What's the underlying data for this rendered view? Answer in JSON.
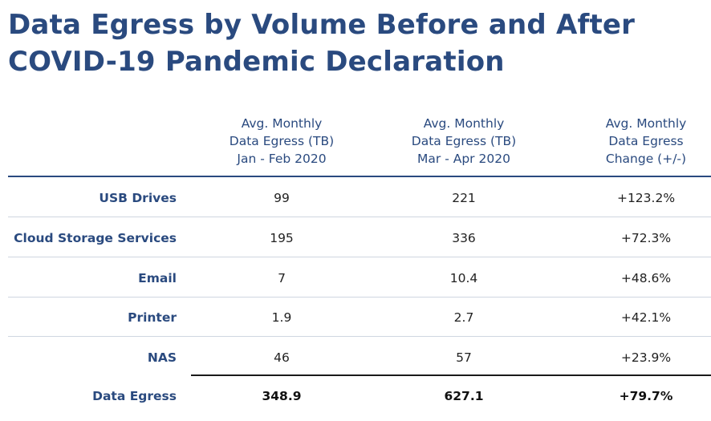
{
  "title": [
    "Data Egress by Volume Before and After",
    "COVID-19 Pandemic Declaration"
  ],
  "colors": {
    "accent": "#2a4a7f",
    "text": "#222222",
    "divider": "#cfd6e0"
  },
  "chart_data": {
    "type": "table",
    "title": "Data Egress by Volume Before and After COVID-19 Pandemic Declaration",
    "columns": [
      [
        "Avg. Monthly",
        "Data Egress (TB)",
        "Jan - Feb 2020"
      ],
      [
        "Avg. Monthly",
        "Data Egress (TB)",
        "Mar - Apr 2020"
      ],
      [
        "Avg. Monthly",
        "Data Egress",
        "Change (+/-)"
      ]
    ],
    "rows": [
      {
        "label": "USB Drives",
        "values": [
          "99",
          "221",
          "+123.2%"
        ]
      },
      {
        "label": "Cloud Storage Services",
        "values": [
          "195",
          "336",
          "+72.3%"
        ]
      },
      {
        "label": "Email",
        "values": [
          "7",
          "10.4",
          "+48.6%"
        ]
      },
      {
        "label": "Printer",
        "values": [
          "1.9",
          "2.7",
          "+42.1%"
        ]
      },
      {
        "label": "NAS",
        "values": [
          "46",
          "57",
          "+23.9%"
        ]
      }
    ],
    "total": {
      "label": "Data Egress",
      "values": [
        "348.9",
        "627.1",
        "+79.7%"
      ]
    }
  }
}
